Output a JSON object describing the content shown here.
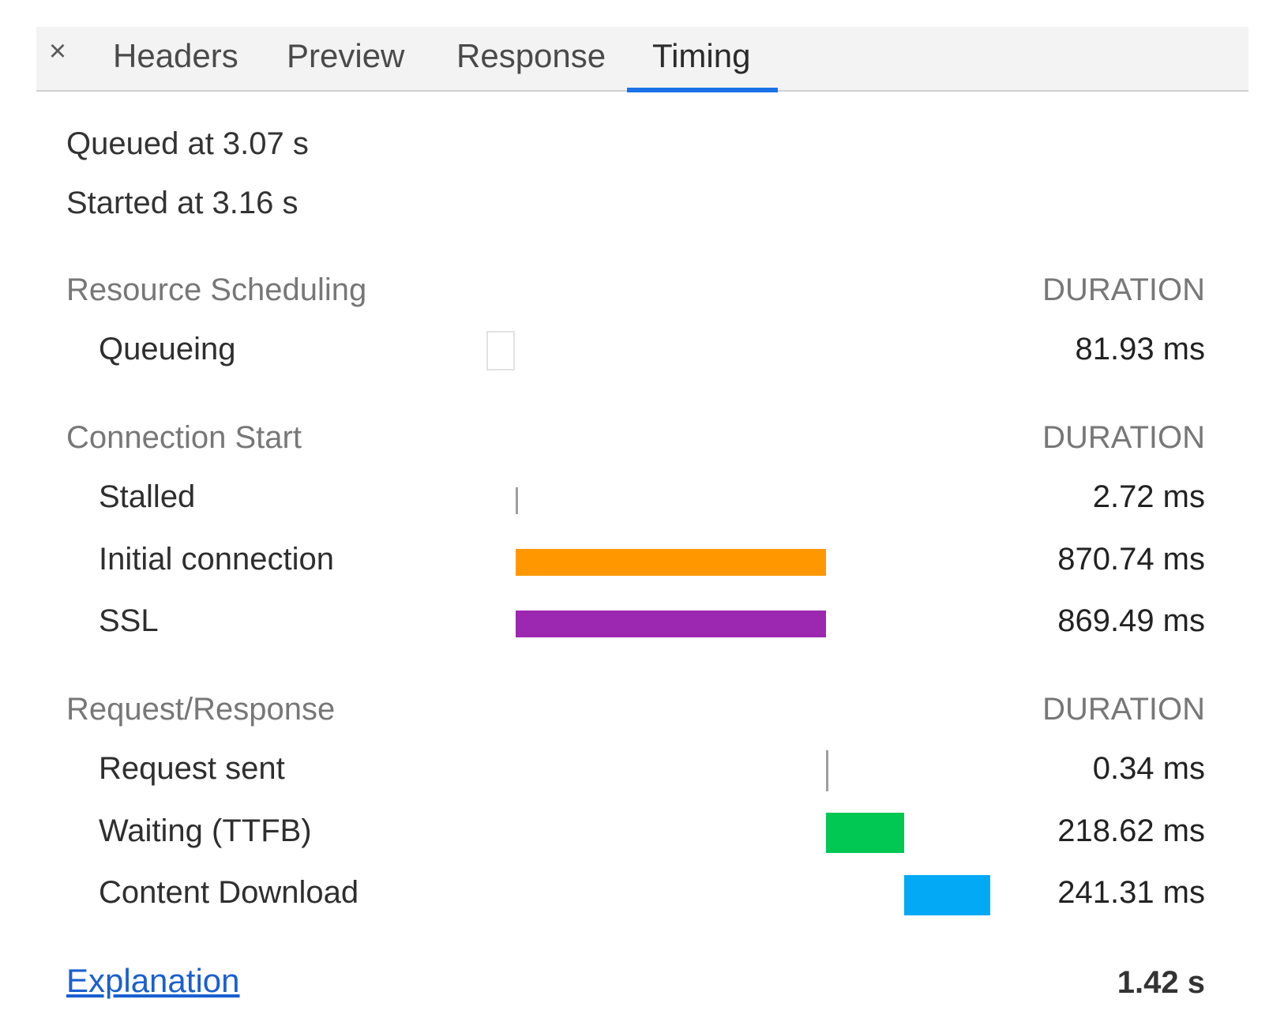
{
  "tabs": {
    "items": [
      {
        "label": "Headers"
      },
      {
        "label": "Preview"
      },
      {
        "label": "Response"
      },
      {
        "label": "Timing",
        "active": true
      }
    ]
  },
  "summary": {
    "queued": "Queued at 3.07 s",
    "started": "Started at 3.16 s"
  },
  "sections": [
    {
      "title": "Resource Scheduling",
      "duration_header": "DURATION",
      "rows": [
        {
          "label": "Queueing",
          "duration": "81.93 ms",
          "color": "#ffffff"
        }
      ]
    },
    {
      "title": "Connection Start",
      "duration_header": "DURATION",
      "rows": [
        {
          "label": "Stalled",
          "duration": "2.72 ms",
          "color": "#9e9e9e"
        },
        {
          "label": "Initial connection",
          "duration": "870.74 ms",
          "color": "#ff9800"
        },
        {
          "label": "SSL",
          "duration": "869.49 ms",
          "color": "#9c27b0"
        }
      ]
    },
    {
      "title": "Request/Response",
      "duration_header": "DURATION",
      "rows": [
        {
          "label": "Request sent",
          "duration": "0.34 ms",
          "color": "#9e9e9e"
        },
        {
          "label": "Waiting (TTFB)",
          "duration": "218.62 ms",
          "color": "#00c853"
        },
        {
          "label": "Content Download",
          "duration": "241.31 ms",
          "color": "#03a9f4"
        }
      ]
    }
  ],
  "footer": {
    "explanation_label": "Explanation",
    "total": "1.42 s"
  },
  "icons": {
    "close": "close-icon"
  }
}
